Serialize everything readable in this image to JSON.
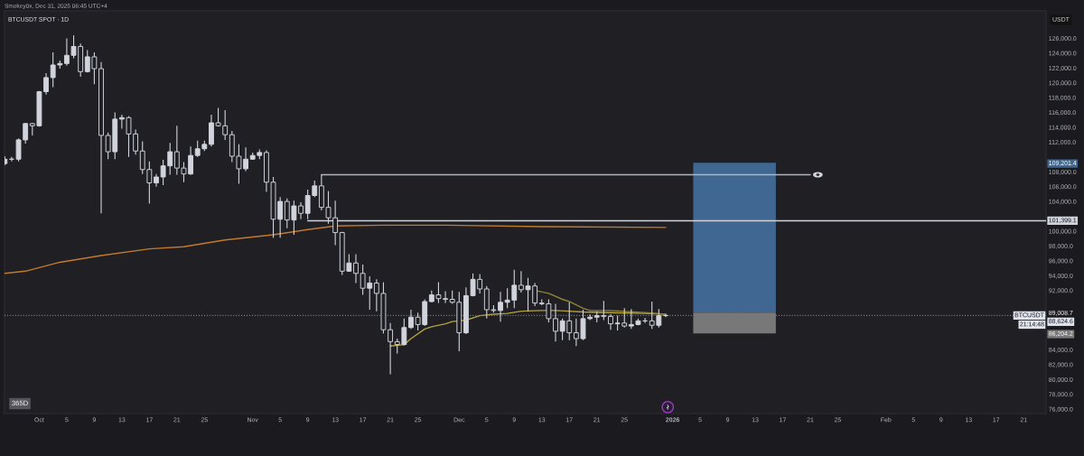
{
  "chart_data": {
    "type": "candlestick",
    "title": "BTCUSDT SPOT · 1D",
    "ylabel": "USDT",
    "color": "#d1d4dc",
    "grid": false,
    "x": [
      "2025-09-26",
      "2025-09-27",
      "2025-09-28",
      "2025-09-29",
      "2025-09-30",
      "2025-10-01",
      "2025-10-02",
      "2025-10-03",
      "2025-10-04",
      "2025-10-05",
      "2025-10-06",
      "2025-10-07",
      "2025-10-08",
      "2025-10-09",
      "2025-10-10",
      "2025-10-11",
      "2025-10-12",
      "2025-10-13",
      "2025-10-14",
      "2025-10-15",
      "2025-10-16",
      "2025-10-17",
      "2025-10-18",
      "2025-10-19",
      "2025-10-20",
      "2025-10-21",
      "2025-10-22",
      "2025-10-23",
      "2025-10-24",
      "2025-10-25",
      "2025-10-26",
      "2025-10-27",
      "2025-10-28",
      "2025-10-29",
      "2025-10-30",
      "2025-10-31",
      "2025-11-01",
      "2025-11-02",
      "2025-11-03",
      "2025-11-04",
      "2025-11-05",
      "2025-11-06",
      "2025-11-07",
      "2025-11-08",
      "2025-11-09",
      "2025-11-10",
      "2025-11-11",
      "2025-11-12",
      "2025-11-13",
      "2025-11-14",
      "2025-11-15",
      "2025-11-16",
      "2025-11-17",
      "2025-11-18",
      "2025-11-19",
      "2025-11-20",
      "2025-11-21",
      "2025-11-22",
      "2025-11-23",
      "2025-11-24",
      "2025-11-25",
      "2025-11-26",
      "2025-11-27",
      "2025-11-28",
      "2025-11-29",
      "2025-11-30",
      "2025-12-01",
      "2025-12-02",
      "2025-12-03",
      "2025-12-04",
      "2025-12-05",
      "2025-12-06",
      "2025-12-07",
      "2025-12-08",
      "2025-12-09",
      "2025-12-10",
      "2025-12-11",
      "2025-12-12",
      "2025-12-13",
      "2025-12-14",
      "2025-12-15",
      "2025-12-16",
      "2025-12-17",
      "2025-12-18",
      "2025-12-19",
      "2025-12-20",
      "2025-12-21",
      "2025-12-22",
      "2025-12-23",
      "2025-12-24",
      "2025-12-25",
      "2025-12-26",
      "2025-12-27",
      "2025-12-28",
      "2025-12-29",
      "2025-12-30",
      "2025-12-31"
    ],
    "ohlc": [
      [
        109100,
        110100,
        108900,
        109700
      ],
      [
        109700,
        110000,
        109400,
        109700
      ],
      [
        109700,
        112500,
        109400,
        112300
      ],
      [
        112300,
        114600,
        111800,
        114500
      ],
      [
        114500,
        114600,
        112900,
        114200
      ],
      [
        114200,
        118900,
        114100,
        118800
      ],
      [
        118800,
        121300,
        118400,
        120700
      ],
      [
        120700,
        124100,
        119400,
        122400
      ],
      [
        122400,
        123000,
        121900,
        122600
      ],
      [
        122600,
        126000,
        122300,
        123700
      ],
      [
        123700,
        126400,
        123300,
        124900
      ],
      [
        124900,
        125300,
        120800,
        121500
      ],
      [
        121500,
        124400,
        121400,
        123500
      ],
      [
        123500,
        124100,
        119800,
        121900
      ],
      [
        121900,
        122800,
        102400,
        112900
      ],
      [
        112900,
        113300,
        109700,
        110700
      ],
      [
        110700,
        116000,
        109700,
        115100
      ],
      [
        115100,
        115700,
        113800,
        115300
      ],
      [
        115300,
        115500,
        110000,
        113100
      ],
      [
        113100,
        113700,
        110300,
        110800
      ],
      [
        110800,
        112100,
        107700,
        108300
      ],
      [
        108300,
        109400,
        103700,
        106500
      ],
      [
        106500,
        107700,
        106000,
        107300
      ],
      [
        107300,
        109600,
        106200,
        108800
      ],
      [
        108800,
        111900,
        107600,
        110700
      ],
      [
        110700,
        114200,
        107600,
        108500
      ],
      [
        108500,
        109300,
        106600,
        107700
      ],
      [
        107700,
        111400,
        107600,
        110200
      ],
      [
        110200,
        112200,
        110000,
        111100
      ],
      [
        111100,
        112200,
        110800,
        111700
      ],
      [
        111700,
        115700,
        111400,
        114600
      ],
      [
        114600,
        116600,
        114100,
        114200
      ],
      [
        114200,
        116300,
        112300,
        113000
      ],
      [
        113000,
        113500,
        109300,
        110100
      ],
      [
        110100,
        111700,
        106400,
        108400
      ],
      [
        108400,
        111300,
        108100,
        109700
      ],
      [
        109700,
        110600,
        109600,
        110200
      ],
      [
        110200,
        111000,
        109700,
        110600
      ],
      [
        110600,
        110900,
        105300,
        106600
      ],
      [
        106600,
        107300,
        99100,
        101600
      ],
      [
        101600,
        104600,
        99100,
        104000
      ],
      [
        104000,
        104400,
        100400,
        101500
      ],
      [
        101500,
        104100,
        99500,
        103400
      ],
      [
        103400,
        103900,
        101600,
        102400
      ],
      [
        102400,
        105600,
        101600,
        104800
      ],
      [
        104800,
        106800,
        104600,
        106100
      ],
      [
        106100,
        107600,
        102800,
        103200
      ],
      [
        103200,
        105400,
        101000,
        101800
      ],
      [
        101800,
        104100,
        98100,
        99800
      ],
      [
        99800,
        99900,
        94100,
        94600
      ],
      [
        94600,
        96900,
        94500,
        95700
      ],
      [
        95700,
        96900,
        93000,
        94300
      ],
      [
        94300,
        95500,
        91400,
        92300
      ],
      [
        92300,
        93900,
        89400,
        93000
      ],
      [
        93000,
        93500,
        89200,
        91600
      ],
      [
        91600,
        93100,
        86200,
        86700
      ],
      [
        86700,
        87600,
        80700,
        85100
      ],
      [
        85100,
        85500,
        83500,
        84700
      ],
      [
        84700,
        88200,
        84600,
        87000
      ],
      [
        87000,
        89400,
        86800,
        88400
      ],
      [
        88400,
        89000,
        86600,
        87400
      ],
      [
        87400,
        90800,
        87200,
        90500
      ],
      [
        90500,
        92000,
        90400,
        91400
      ],
      [
        91400,
        93100,
        90300,
        90900
      ],
      [
        90900,
        91900,
        90300,
        90800
      ],
      [
        90800,
        92000,
        90200,
        90400
      ],
      [
        90400,
        91800,
        83800,
        86300
      ],
      [
        86300,
        92400,
        86100,
        91300
      ],
      [
        91300,
        94300,
        91200,
        93500
      ],
      [
        93500,
        94200,
        91600,
        92200
      ],
      [
        92200,
        92600,
        88200,
        89400
      ],
      [
        89400,
        90000,
        89000,
        89300
      ],
      [
        89300,
        91800,
        87800,
        90400
      ],
      [
        90400,
        92300,
        89600,
        90700
      ],
      [
        90700,
        94800,
        89600,
        92700
      ],
      [
        92700,
        94600,
        91700,
        92100
      ],
      [
        92100,
        93700,
        89200,
        92600
      ],
      [
        92600,
        93000,
        89900,
        90300
      ],
      [
        90300,
        90800,
        90000,
        90200
      ],
      [
        90200,
        90800,
        87700,
        88200
      ],
      [
        88200,
        90200,
        85100,
        86500
      ],
      [
        86500,
        88200,
        85300,
        87900
      ],
      [
        87900,
        90400,
        85300,
        86300
      ],
      [
        86300,
        88200,
        84500,
        85500
      ],
      [
        85500,
        89400,
        85300,
        88200
      ],
      [
        88200,
        88800,
        88000,
        88400
      ],
      [
        88400,
        89200,
        87700,
        88600
      ],
      [
        88600,
        90600,
        88000,
        88500
      ],
      [
        88500,
        88800,
        86700,
        87500
      ],
      [
        87500,
        88600,
        86600,
        87600
      ],
      [
        87600,
        89600,
        87000,
        87200
      ],
      [
        87200,
        89500,
        86800,
        87400
      ],
      [
        87400,
        88200,
        87300,
        87900
      ],
      [
        87900,
        88300,
        87600,
        87900
      ],
      [
        87900,
        90500,
        86800,
        87300
      ],
      [
        87300,
        89500,
        87000,
        88600
      ],
      [
        88600,
        88800,
        88400,
        88624.6
      ]
    ],
    "series": [
      {
        "type": "line",
        "color": "#c47a2c",
        "x": [
          "2025-09-26",
          "2025-09-29",
          "2025-10-04",
          "2025-10-10",
          "2025-10-17",
          "2025-10-22",
          "2025-10-28",
          "2025-11-04",
          "2025-11-09",
          "2025-11-13",
          "2025-11-20",
          "2025-11-29",
          "2025-12-13",
          "2025-12-31"
        ],
        "values": [
          94300,
          94600,
          95800,
          96700,
          97600,
          97900,
          98800,
          99500,
          100200,
          100700,
          100800,
          100800,
          100600,
          100500
        ]
      },
      {
        "type": "line",
        "color": "#b5a33e",
        "x": [
          "2025-11-21",
          "2025-11-23",
          "2025-11-24",
          "2025-11-26",
          "2025-11-27",
          "2025-11-29",
          "2025-11-30",
          "2025-12-02",
          "2025-12-04",
          "2025-12-06",
          "2025-12-08",
          "2025-12-10",
          "2025-12-13",
          "2025-12-15",
          "2025-12-17",
          "2025-12-19",
          "2025-12-23",
          "2025-12-28",
          "2025-12-31"
        ],
        "values": [
          84500,
          84700,
          85500,
          86800,
          87100,
          87500,
          87800,
          88000,
          88600,
          88800,
          88900,
          89200,
          89300,
          89300,
          89200,
          89100,
          89000,
          88900,
          88800
        ]
      },
      {
        "type": "line",
        "color": "#8f8337",
        "x": [
          "2025-12-12",
          "2025-12-14",
          "2025-12-16",
          "2025-12-17",
          "2025-12-19",
          "2025-12-20",
          "2025-12-23",
          "2025-12-28",
          "2025-12-31"
        ],
        "values": [
          92000,
          91600,
          90800,
          90500,
          89600,
          89300,
          89300,
          89000,
          88800
        ]
      },
      {
        "type": "line",
        "color": "#b2b5be",
        "x": [
          "2025-11-11",
          "2026-01-21"
        ],
        "values": [
          107600,
          107600
        ]
      },
      {
        "type": "line",
        "color": "#d1d4dc",
        "x": [
          "2025-11-09",
          "2026-02-24T06:00"
        ],
        "values": [
          101399.1,
          101399.1
        ],
        "value_labels": [
          null,
          "101,399.1"
        ]
      },
      {
        "type": "bar",
        "color": "#3f6791",
        "x": [
          "2026-01-10"
        ],
        "values": [
          20192.7
        ],
        "base": [
          89008.7
        ]
      },
      {
        "type": "bar",
        "color": "#787878",
        "x": [
          "2026-01-10"
        ],
        "values": [
          2804.5
        ],
        "base": [
          86204.2
        ]
      }
    ],
    "ref_lines": [
      {
        "axis": "y",
        "value": 88624.6,
        "label": "88,624.6",
        "line_style": "dotted",
        "color": "#787b86"
      }
    ],
    "xlim": [
      "2025-09-25T23:00",
      "2026-02-24T06:00"
    ],
    "ylim": [
      75400,
      129700
    ],
    "xticks": [
      {
        "value": "2025-10-01",
        "label": "Oct"
      },
      {
        "value": "2025-10-05",
        "label": "5"
      },
      {
        "value": "2025-10-09",
        "label": "9"
      },
      {
        "value": "2025-10-13",
        "label": "13"
      },
      {
        "value": "2025-10-17",
        "label": "17"
      },
      {
        "value": "2025-10-21",
        "label": "21"
      },
      {
        "value": "2025-10-25",
        "label": "25"
      },
      {
        "value": "2025-11-01",
        "label": "Nov"
      },
      {
        "value": "2025-11-05",
        "label": "5"
      },
      {
        "value": "2025-11-09",
        "label": "9"
      },
      {
        "value": "2025-11-13",
        "label": "13"
      },
      {
        "value": "2025-11-17",
        "label": "17"
      },
      {
        "value": "2025-11-21",
        "label": "21"
      },
      {
        "value": "2025-11-25",
        "label": "25"
      },
      {
        "value": "2025-12-01",
        "label": "Dec"
      },
      {
        "value": "2025-12-05",
        "label": "5"
      },
      {
        "value": "2025-12-09",
        "label": "9"
      },
      {
        "value": "2025-12-13",
        "label": "13"
      },
      {
        "value": "2025-12-17",
        "label": "17"
      },
      {
        "value": "2025-12-21",
        "label": "21"
      },
      {
        "value": "2025-12-25",
        "label": "25"
      },
      {
        "value": "2026-01-01",
        "label": "2026"
      },
      {
        "value": "2026-01-05",
        "label": "5"
      },
      {
        "value": "2026-01-09",
        "label": "9"
      },
      {
        "value": "2026-01-13",
        "label": "13"
      },
      {
        "value": "2026-01-17",
        "label": "17"
      },
      {
        "value": "2026-01-21",
        "label": "21"
      },
      {
        "value": "2026-01-25",
        "label": "25"
      },
      {
        "value": "2026-02-01",
        "label": "Feb"
      },
      {
        "value": "2026-02-05",
        "label": "5"
      },
      {
        "value": "2026-02-09",
        "label": "9"
      },
      {
        "value": "2026-02-13",
        "label": "13"
      },
      {
        "value": "2026-02-17",
        "label": "17"
      },
      {
        "value": "2026-02-21",
        "label": "21"
      }
    ],
    "yticks": [
      {
        "value": 76000,
        "label": "76,000.0"
      },
      {
        "value": 78000,
        "label": "78,000.0"
      },
      {
        "value": 80000,
        "label": "80,000.0"
      },
      {
        "value": 82000,
        "label": "82,000.0"
      },
      {
        "value": 84000,
        "label": "84,000.0"
      },
      {
        "value": 86204.2,
        "label": "86,204.2"
      },
      {
        "value": 89008.7,
        "label": "89,008.7"
      },
      {
        "value": 92000,
        "label": "92,000.0"
      },
      {
        "value": 94000,
        "label": "94,000.0"
      },
      {
        "value": 96000,
        "label": "96,000.0"
      },
      {
        "value": 98000,
        "label": "98,000.0"
      },
      {
        "value": 100000,
        "label": "100,000.0"
      },
      {
        "value": 104000,
        "label": "104,000.0"
      },
      {
        "value": 106000,
        "label": "106,000.0"
      },
      {
        "value": 108000,
        "label": "108,000.0"
      },
      {
        "value": 109201.4,
        "label": "109,201.4"
      },
      {
        "value": 112000,
        "label": "112,000.0"
      },
      {
        "value": 114000,
        "label": "114,000.0"
      },
      {
        "value": 116000,
        "label": "116,000.0"
      },
      {
        "value": 118000,
        "label": "118,000.0"
      },
      {
        "value": 120000,
        "label": "120,000.0"
      },
      {
        "value": 122000,
        "label": "122,000.0"
      },
      {
        "value": 124000,
        "label": "124,000.0"
      },
      {
        "value": 126000,
        "label": "126,000.0"
      }
    ],
    "annotations": [
      "Smokey0x, Dec 31, 2025 06:45 UTC+4",
      "365D",
      "BTCUSDT",
      "21:14:48"
    ]
  }
}
